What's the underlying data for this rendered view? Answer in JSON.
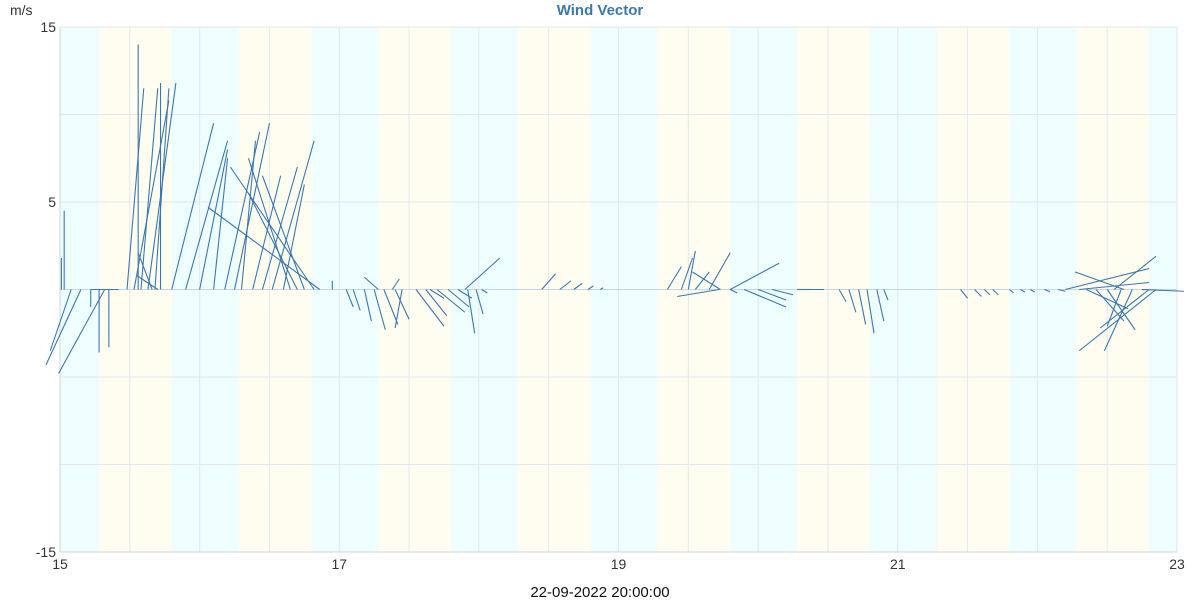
{
  "chart_data": {
    "type": "vector",
    "title": "Wind Vector",
    "ylabel": "m/s",
    "xlabel": "22-09-2022 20:00:00",
    "xlim": [
      15,
      23
    ],
    "ylim": [
      -15,
      15
    ],
    "xticks": [
      15,
      17,
      19,
      21,
      23
    ],
    "yticks": [
      -15,
      5,
      15
    ],
    "grid": true,
    "colors": {
      "line": "#3a78b0",
      "title": "#3a78b0",
      "grid": "#e2e8ee",
      "day": "#fefdf0",
      "night": "#eefdfd"
    },
    "day_bands": [
      [
        15.28,
        15.8
      ],
      [
        16.28,
        16.8
      ],
      [
        17.28,
        17.8
      ],
      [
        18.28,
        18.8
      ],
      [
        19.28,
        19.8
      ],
      [
        20.28,
        20.8
      ],
      [
        21.28,
        21.8
      ],
      [
        22.28,
        22.8
      ]
    ],
    "night_bands": [
      [
        15.0,
        15.28
      ],
      [
        15.8,
        16.28
      ],
      [
        16.8,
        17.28
      ],
      [
        17.8,
        18.28
      ],
      [
        18.8,
        19.28
      ],
      [
        19.8,
        20.28
      ],
      [
        20.8,
        21.28
      ],
      [
        21.8,
        22.28
      ],
      [
        22.8,
        23.0
      ]
    ],
    "vectors": [
      [
        15.03,
        0.0,
        4.5
      ],
      [
        15.01,
        0.0,
        1.8
      ],
      [
        15.08,
        -0.15,
        -3.5
      ],
      [
        15.15,
        -0.25,
        -4.3
      ],
      [
        15.32,
        -0.33,
        -4.8
      ],
      [
        15.22,
        0.0,
        -1.0
      ],
      [
        15.28,
        0.0,
        -3.6
      ],
      [
        15.35,
        0.0,
        -3.3
      ],
      [
        15.42,
        -0.2,
        0.0
      ],
      [
        15.48,
        0.12,
        11.5
      ],
      [
        15.53,
        0.25,
        10.8
      ],
      [
        15.58,
        0.12,
        11.5
      ],
      [
        15.63,
        0.2,
        11.8
      ],
      [
        15.68,
        0.1,
        11.5
      ],
      [
        15.72,
        0.0,
        11.8
      ],
      [
        15.66,
        -0.1,
        2.1
      ],
      [
        15.7,
        -0.15,
        0.8
      ],
      [
        15.56,
        0.0,
        14.0
      ],
      [
        15.8,
        0.3,
        9.5
      ],
      [
        15.9,
        0.3,
        8.5
      ],
      [
        16.0,
        0.2,
        8.0
      ],
      [
        16.1,
        0.1,
        7.5
      ],
      [
        16.18,
        0.25,
        9.0
      ],
      [
        16.25,
        0.25,
        9.5
      ],
      [
        16.3,
        0.1,
        8.5
      ],
      [
        16.38,
        0.2,
        6.5
      ],
      [
        16.45,
        0.25,
        7.0
      ],
      [
        16.52,
        0.3,
        8.5
      ],
      [
        16.6,
        0.15,
        6.0
      ],
      [
        16.65,
        -0.3,
        7.5
      ],
      [
        16.7,
        -0.35,
        5.5
      ],
      [
        16.75,
        -0.3,
        6.5
      ],
      [
        16.82,
        -0.6,
        7.0
      ],
      [
        16.95,
        0.0,
        0.5
      ],
      [
        16.86,
        -0.8,
        4.7
      ],
      [
        17.05,
        0.05,
        -1.0
      ],
      [
        17.1,
        0.05,
        -1.2
      ],
      [
        17.18,
        0.05,
        -1.8
      ],
      [
        17.25,
        0.08,
        -2.3
      ],
      [
        17.32,
        0.1,
        -2.0
      ],
      [
        17.4,
        0.1,
        -1.7
      ],
      [
        17.45,
        -0.05,
        -2.2
      ],
      [
        17.28,
        -0.1,
        0.7
      ],
      [
        17.38,
        0.05,
        0.6
      ],
      [
        17.55,
        0.2,
        -2.1
      ],
      [
        17.62,
        0.15,
        -1.5
      ],
      [
        17.7,
        0.2,
        -1.3
      ],
      [
        17.78,
        0.15,
        -1.0
      ],
      [
        17.85,
        0.1,
        -0.5
      ],
      [
        17.92,
        0.05,
        -2.5
      ],
      [
        17.98,
        0.05,
        -1.4
      ],
      [
        18.02,
        0.04,
        -0.2
      ],
      [
        17.9,
        0.25,
        1.8
      ],
      [
        17.65,
        0.1,
        -0.5
      ],
      [
        18.3,
        0.0,
        0.0
      ],
      [
        18.45,
        0.1,
        0.9
      ],
      [
        18.58,
        0.08,
        0.5
      ],
      [
        18.68,
        0.06,
        0.35
      ],
      [
        18.78,
        0.04,
        0.2
      ],
      [
        18.87,
        0.02,
        0.1
      ],
      [
        19.35,
        0.1,
        1.3
      ],
      [
        19.45,
        0.08,
        1.8
      ],
      [
        19.5,
        0.05,
        2.2
      ],
      [
        19.55,
        0.1,
        1.0
      ],
      [
        19.65,
        0.15,
        2.1
      ],
      [
        19.73,
        -0.2,
        1.0
      ],
      [
        19.8,
        0.35,
        1.5
      ],
      [
        19.72,
        -0.3,
        -0.4
      ],
      [
        19.8,
        0.05,
        -0.2
      ],
      [
        19.9,
        0.3,
        -1.0
      ],
      [
        20.0,
        0.2,
        -0.6
      ],
      [
        20.1,
        0.15,
        -0.3
      ],
      [
        20.28,
        0.1,
        0.0
      ],
      [
        20.32,
        0.15,
        0.0
      ],
      [
        20.58,
        0.05,
        -0.7
      ],
      [
        20.65,
        0.05,
        -1.3
      ],
      [
        20.72,
        0.05,
        -2.0
      ],
      [
        20.78,
        0.05,
        -2.5
      ],
      [
        20.85,
        0.05,
        -1.8
      ],
      [
        20.9,
        0.03,
        -0.6
      ],
      [
        21.45,
        0.05,
        -0.5
      ],
      [
        21.55,
        0.05,
        -0.4
      ],
      [
        21.62,
        0.04,
        -0.3
      ],
      [
        21.68,
        0.04,
        -0.3
      ],
      [
        21.8,
        0.03,
        -0.2
      ],
      [
        21.88,
        0.03,
        -0.15
      ],
      [
        21.95,
        0.03,
        -0.15
      ],
      [
        22.05,
        0.04,
        -0.12
      ],
      [
        22.15,
        0.05,
        -0.1
      ],
      [
        22.2,
        0.6,
        1.2
      ],
      [
        22.3,
        0.5,
        0.4
      ],
      [
        22.35,
        0.3,
        -1.1
      ],
      [
        22.42,
        0.2,
        -1.8
      ],
      [
        22.5,
        0.2,
        -2.3
      ],
      [
        22.55,
        0.3,
        1.9
      ],
      [
        22.62,
        -0.35,
        1.0
      ],
      [
        22.6,
        -0.1,
        -2.1
      ],
      [
        22.68,
        -0.2,
        -3.5
      ],
      [
        22.75,
        0.3,
        -0.1
      ],
      [
        22.8,
        -0.35,
        -2.2
      ],
      [
        22.85,
        -0.55,
        -3.5
      ]
    ]
  },
  "footer_time": "22-09-2022 20:00:00"
}
